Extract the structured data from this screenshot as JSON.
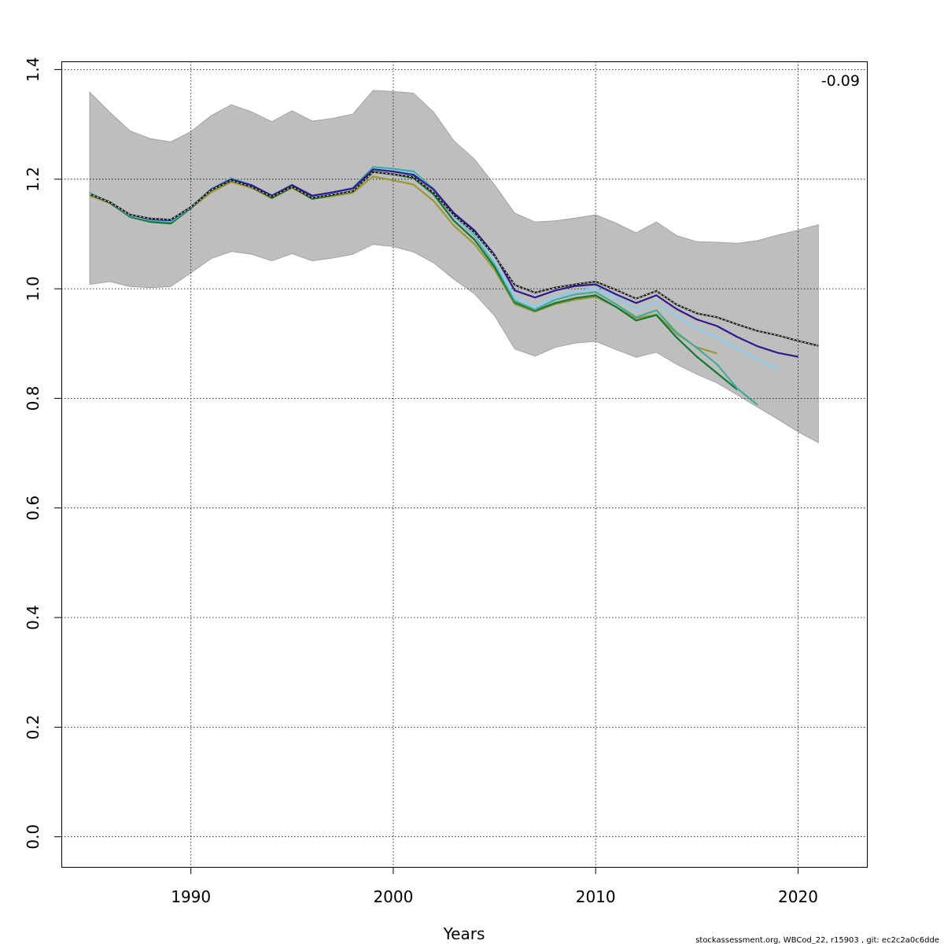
{
  "chart_data": {
    "type": "line",
    "title": "",
    "xlabel": "Years",
    "ylabel": "",
    "xlim": [
      1983.6,
      2023.4
    ],
    "ylim": [
      -0.055,
      1.415
    ],
    "x_ticks": [
      1990,
      2000,
      2010,
      2020
    ],
    "y_ticks": [
      0.0,
      0.2,
      0.4,
      0.6,
      0.8,
      1.0,
      1.2,
      1.4
    ],
    "x_tick_labels": [
      "1990",
      "2000",
      "2010",
      "2020"
    ],
    "y_tick_labels": [
      "0.0",
      "0.2",
      "0.4",
      "0.6",
      "0.8",
      "1.0",
      "1.2",
      "1.4"
    ],
    "grid": true,
    "annotation": "-0.09",
    "footer": "stockassessment.org, WBCod_22, r15903 , git: ec2c2a0c6dde",
    "band": {
      "color": "#bebebe",
      "x": [
        1985,
        1986,
        1987,
        1988,
        1989,
        1990,
        1991,
        1992,
        1993,
        1994,
        1995,
        1996,
        1997,
        1998,
        1999,
        2000,
        2001,
        2002,
        2003,
        2004,
        2005,
        2006,
        2007,
        2008,
        2009,
        2010,
        2011,
        2012,
        2013,
        2014,
        2015,
        2016,
        2017,
        2018,
        2019,
        2020,
        2021
      ],
      "upper": [
        1.359,
        1.322,
        1.288,
        1.274,
        1.268,
        1.287,
        1.316,
        1.336,
        1.323,
        1.305,
        1.325,
        1.306,
        1.311,
        1.319,
        1.362,
        1.36,
        1.357,
        1.322,
        1.27,
        1.237,
        1.19,
        1.138,
        1.122,
        1.124,
        1.129,
        1.135,
        1.12,
        1.102,
        1.122,
        1.097,
        1.086,
        1.085,
        1.083,
        1.088,
        1.098,
        1.107,
        1.117
      ],
      "lower": [
        1.008,
        1.013,
        1.004,
        1.002,
        1.004,
        1.029,
        1.055,
        1.068,
        1.063,
        1.051,
        1.064,
        1.051,
        1.056,
        1.063,
        1.081,
        1.077,
        1.067,
        1.047,
        1.017,
        0.991,
        0.951,
        0.89,
        0.877,
        0.893,
        0.901,
        0.904,
        0.889,
        0.875,
        0.884,
        0.862,
        0.844,
        0.828,
        0.806,
        0.784,
        0.762,
        0.739,
        0.719
      ]
    },
    "series": [
      {
        "color": "#1f1f1f",
        "dashed_overlay": true,
        "x": [
          1985,
          1986,
          1987,
          1988,
          1989,
          1990,
          1991,
          1992,
          1993,
          1994,
          1995,
          1996,
          1997,
          1998,
          1999,
          2000,
          2001,
          2002,
          2003,
          2004,
          2005,
          2006,
          2007,
          2008,
          2009,
          2010,
          2011,
          2012,
          2013,
          2014,
          2015,
          2016,
          2017,
          2018,
          2019,
          2020,
          2021
        ],
        "values": [
          1.173,
          1.158,
          1.135,
          1.128,
          1.126,
          1.149,
          1.18,
          1.198,
          1.186,
          1.168,
          1.186,
          1.166,
          1.172,
          1.178,
          1.213,
          1.209,
          1.204,
          1.175,
          1.134,
          1.103,
          1.06,
          1.007,
          0.993,
          1.002,
          1.008,
          1.013,
          0.998,
          0.982,
          0.996,
          0.971,
          0.955,
          0.948,
          0.935,
          0.923,
          0.915,
          0.905,
          0.896
        ]
      },
      {
        "color": "#2b1c8f",
        "x": [
          1985,
          1986,
          1987,
          1988,
          1989,
          1990,
          1991,
          1992,
          1993,
          1994,
          1995,
          1996,
          1997,
          1998,
          1999,
          2000,
          2001,
          2002,
          2003,
          2004,
          2005,
          2006,
          2007,
          2008,
          2009,
          2010,
          2011,
          2012,
          2013,
          2014,
          2015,
          2016,
          2017,
          2018,
          2019,
          2020
        ],
        "values": [
          1.173,
          1.158,
          1.135,
          1.127,
          1.125,
          1.149,
          1.181,
          1.2,
          1.189,
          1.17,
          1.189,
          1.17,
          1.176,
          1.183,
          1.218,
          1.214,
          1.208,
          1.181,
          1.138,
          1.107,
          1.062,
          0.997,
          0.984,
          0.997,
          1.005,
          1.008,
          0.99,
          0.974,
          0.988,
          0.963,
          0.944,
          0.932,
          0.912,
          0.895,
          0.883,
          0.876
        ]
      },
      {
        "color": "#88ccee",
        "x": [
          1985,
          1986,
          1987,
          1988,
          1989,
          1990,
          1991,
          1992,
          1993,
          1994,
          1995,
          1996,
          1997,
          1998,
          1999,
          2000,
          2001,
          2002,
          2003,
          2004,
          2005,
          2006,
          2007,
          2008,
          2009,
          2010,
          2011,
          2012,
          2013,
          2014,
          2015,
          2016,
          2017,
          2018,
          2019
        ],
        "values": [
          1.174,
          1.158,
          1.134,
          1.126,
          1.124,
          1.149,
          1.181,
          1.201,
          1.19,
          1.17,
          1.189,
          1.168,
          1.175,
          1.183,
          1.219,
          1.216,
          1.211,
          1.18,
          1.132,
          1.1,
          1.05,
          0.984,
          0.968,
          0.985,
          0.995,
          1.001,
          0.983,
          0.962,
          0.975,
          0.95,
          0.928,
          0.911,
          0.891,
          0.871,
          0.855
        ]
      },
      {
        "color": "#44aa99",
        "x": [
          1985,
          1986,
          1987,
          1988,
          1989,
          1990,
          1991,
          1992,
          1993,
          1994,
          1995,
          1996,
          1997,
          1998,
          1999,
          2000,
          2001,
          2002,
          2003,
          2004,
          2005,
          2006,
          2007,
          2008,
          2009,
          2010,
          2011,
          2012,
          2013,
          2014,
          2015,
          2016,
          2017,
          2018
        ],
        "values": [
          1.175,
          1.158,
          1.133,
          1.125,
          1.122,
          1.148,
          1.182,
          1.202,
          1.19,
          1.17,
          1.19,
          1.168,
          1.176,
          1.184,
          1.222,
          1.219,
          1.214,
          1.182,
          1.132,
          1.098,
          1.046,
          0.978,
          0.962,
          0.98,
          0.99,
          0.994,
          0.972,
          0.948,
          0.961,
          0.92,
          0.892,
          0.862,
          0.818,
          0.788
        ]
      },
      {
        "color": "#117733",
        "x": [
          1985,
          1986,
          1987,
          1988,
          1989,
          1990,
          1991,
          1992,
          1993,
          1994,
          1995,
          1996,
          1997,
          1998,
          1999,
          2000,
          2001,
          2002,
          2003,
          2004,
          2005,
          2006,
          2007,
          2008,
          2009,
          2010,
          2011,
          2012,
          2013,
          2014,
          2015,
          2016,
          2017
        ],
        "values": [
          1.175,
          1.157,
          1.131,
          1.122,
          1.119,
          1.147,
          1.181,
          1.199,
          1.187,
          1.166,
          1.186,
          1.164,
          1.171,
          1.178,
          1.214,
          1.209,
          1.202,
          1.172,
          1.124,
          1.09,
          1.04,
          0.975,
          0.96,
          0.974,
          0.983,
          0.988,
          0.967,
          0.942,
          0.952,
          0.911,
          0.876,
          0.846,
          0.816
        ]
      },
      {
        "color": "#999933",
        "x": [
          1985,
          1986,
          1987,
          1988,
          1989,
          1990,
          1991,
          1992,
          1993,
          1994,
          1995,
          1996,
          1997,
          1998,
          1999,
          2000,
          2001,
          2002,
          2003,
          2004,
          2005,
          2006,
          2007,
          2008,
          2009,
          2010,
          2011,
          2012,
          2013,
          2014,
          2015,
          2016
        ],
        "values": [
          1.17,
          1.156,
          1.132,
          1.125,
          1.123,
          1.147,
          1.176,
          1.195,
          1.184,
          1.165,
          1.184,
          1.164,
          1.169,
          1.175,
          1.205,
          1.198,
          1.19,
          1.16,
          1.115,
          1.082,
          1.035,
          0.972,
          0.958,
          0.972,
          0.98,
          0.985,
          0.967,
          0.946,
          0.953,
          0.918,
          0.893,
          0.882
        ]
      }
    ]
  }
}
